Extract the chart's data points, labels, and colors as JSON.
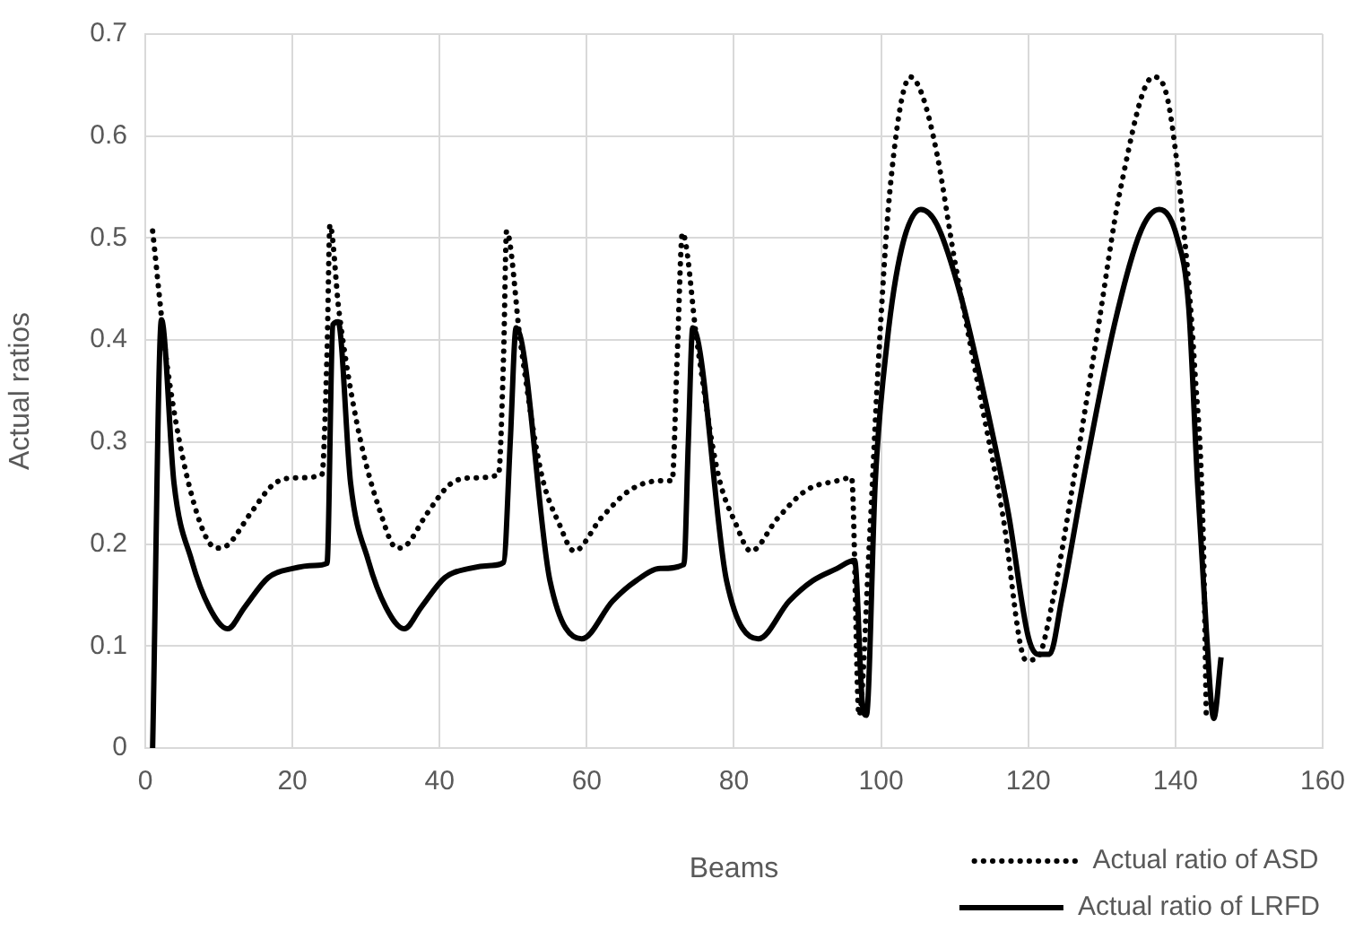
{
  "chart_data": {
    "type": "line",
    "xlabel": "Beams",
    "ylabel": "Actual ratios",
    "xlim": [
      0,
      160
    ],
    "xticks": [
      0,
      20,
      40,
      60,
      80,
      100,
      120,
      140,
      160
    ],
    "ylim": [
      0,
      0.7
    ],
    "yticks": [
      0,
      0.1,
      0.2,
      0.3,
      0.4,
      0.5,
      0.6,
      0.7
    ],
    "grid": true,
    "legend": "bottom right",
    "marker": "none",
    "series": [
      {
        "name": "Actual ratio of ASD",
        "color": "#000000",
        "line_style": "dotted",
        "x": [
          1,
          3,
          6.3,
          9.7,
          11.2,
          14.3,
          17.5,
          20.7,
          24,
          24.7,
          25.1,
          26.3,
          28.8,
          32,
          34.2,
          35.5,
          38.3,
          41.5,
          44.7,
          48,
          48.7,
          49.1,
          51,
          53.8,
          56.3,
          58.3,
          61.9,
          65.9,
          70,
          71.6,
          72.3,
          73,
          75,
          77.8,
          80.3,
          82.3,
          85.9,
          89.9,
          94,
          96,
          97,
          98.4,
          99.6,
          101.2,
          104,
          105.6,
          107.6,
          110,
          113.3,
          116.5,
          119.7,
          121.3,
          123.3,
          126.1,
          129.3,
          132.5,
          137,
          139,
          141,
          142.6,
          143.8,
          144.2
        ],
        "values": [
          0.507,
          0.374,
          0.248,
          0.196,
          0.199,
          0.23,
          0.259,
          0.265,
          0.268,
          0.386,
          0.513,
          0.43,
          0.317,
          0.23,
          0.196,
          0.199,
          0.23,
          0.259,
          0.265,
          0.268,
          0.386,
          0.507,
          0.397,
          0.27,
          0.219,
          0.193,
          0.225,
          0.253,
          0.262,
          0.262,
          0.386,
          0.505,
          0.397,
          0.27,
          0.219,
          0.193,
          0.225,
          0.253,
          0.262,
          0.265,
          0.032,
          0.2,
          0.374,
          0.547,
          0.658,
          0.64,
          0.582,
          0.478,
          0.351,
          0.23,
          0.086,
          0.089,
          0.144,
          0.26,
          0.403,
          0.547,
          0.658,
          0.634,
          0.518,
          0.374,
          0.2,
          0.026
        ]
      },
      {
        "name": "Actual ratio of LRFD",
        "color": "#000000",
        "line_style": "solid",
        "x": [
          1,
          2.2,
          3.9,
          6.3,
          8.7,
          11.2,
          13.5,
          16.7,
          20,
          23,
          24.7,
          25.5,
          26.2,
          27.9,
          30.3,
          32.7,
          35.2,
          37.5,
          40.7,
          44,
          47,
          48.7,
          49.6,
          50.4,
          55,
          59.3,
          63.5,
          66.7,
          70,
          73.2,
          73.8,
          74.4,
          79,
          83.3,
          87.5,
          90.7,
          94,
          96.4,
          97.5,
          98,
          99.2,
          100.8,
          102.8,
          105.4,
          107.6,
          110.8,
          114,
          117.3,
          120,
          121.3,
          122.9,
          124.5,
          127.7,
          131.7,
          135.3,
          137.8,
          140.2,
          141.8,
          143,
          144.2,
          145.2,
          146.2
        ],
        "values": [
          0,
          0.42,
          0.26,
          0.184,
          0.138,
          0.117,
          0.138,
          0.167,
          0.176,
          0.179,
          0.181,
          0.415,
          0.418,
          0.26,
          0.184,
          0.138,
          0.117,
          0.138,
          0.167,
          0.176,
          0.179,
          0.182,
          0.3,
          0.412,
          0.164,
          0.107,
          0.144,
          0.164,
          0.176,
          0.18,
          0.3,
          0.412,
          0.164,
          0.107,
          0.144,
          0.164,
          0.176,
          0.184,
          0.04,
          0.032,
          0.26,
          0.397,
          0.49,
          0.528,
          0.513,
          0.444,
          0.346,
          0.23,
          0.109,
          0.092,
          0.092,
          0.144,
          0.271,
          0.415,
          0.507,
          0.528,
          0.501,
          0.432,
          0.26,
          0.115,
          0.029,
          0.089
        ]
      }
    ]
  }
}
